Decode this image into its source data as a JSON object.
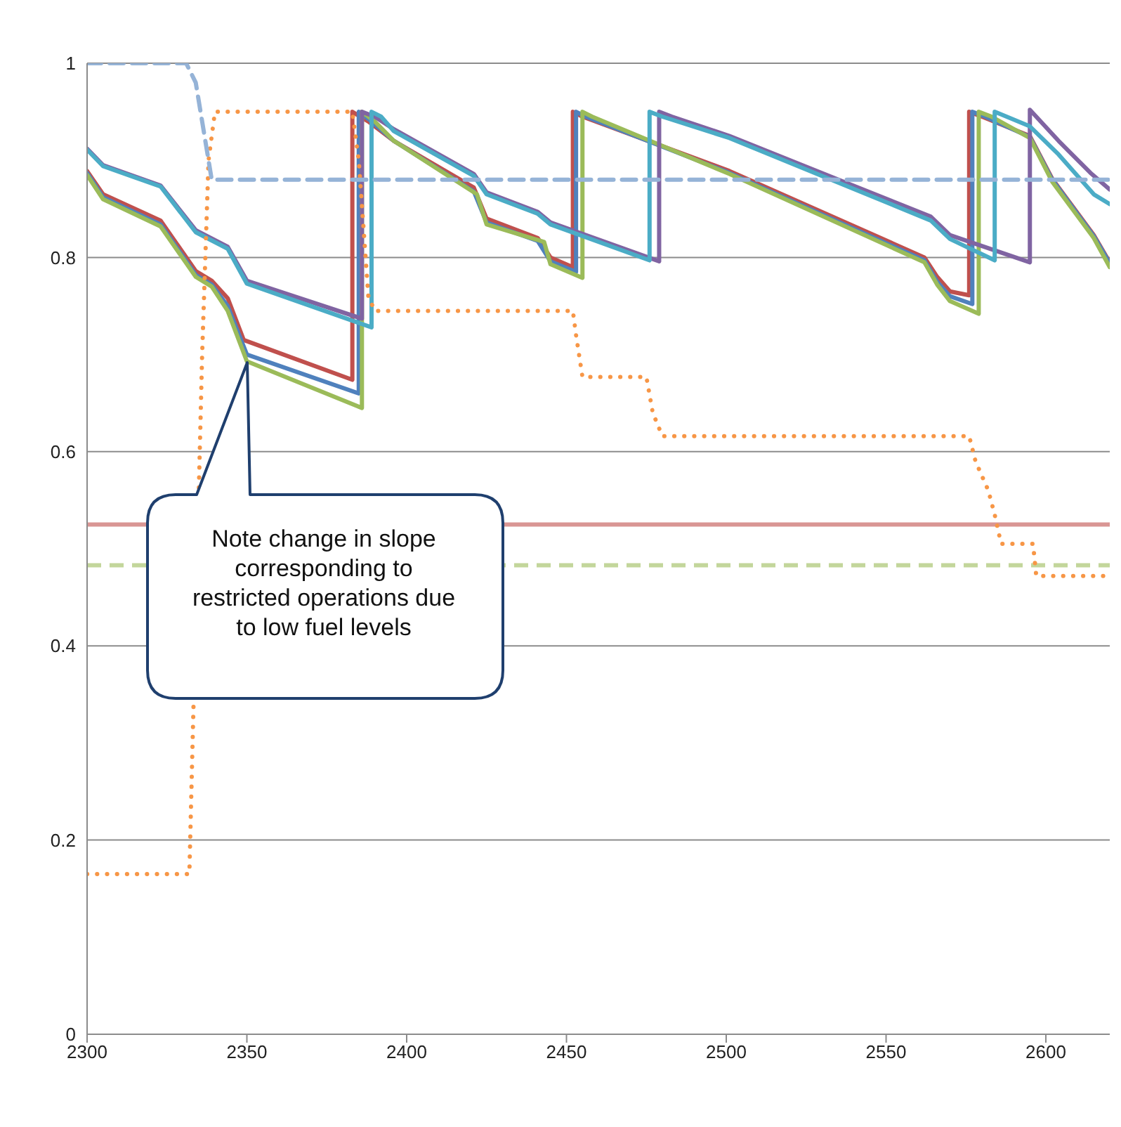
{
  "chart_data": {
    "type": "line",
    "xlim": [
      2300,
      2620
    ],
    "xticks": [
      2300,
      2350,
      2400,
      2450,
      2500,
      2550,
      2600
    ],
    "ylim": [
      0,
      1
    ],
    "yticks": [
      0,
      0.2,
      0.4,
      0.6,
      0.8,
      1
    ],
    "grid": "y",
    "marker": "none",
    "series": [
      {
        "color": "#c0504d",
        "line_style": "solid",
        "x": [
          2300,
          2305,
          2323,
          2334,
          2339,
          2344,
          2349,
          2383,
          2383,
          2388,
          2396,
          2421,
          2425,
          2441,
          2445,
          2452,
          2452,
          2455,
          2501,
          2562,
          2566,
          2570,
          2576,
          2576,
          2580,
          2595,
          2602,
          2615,
          2620
        ],
        "values": [
          0.889,
          0.865,
          0.838,
          0.786,
          0.776,
          0.758,
          0.715,
          0.674,
          0.95,
          0.94,
          0.92,
          0.872,
          0.84,
          0.82,
          0.8,
          0.79,
          0.95,
          0.945,
          0.889,
          0.8,
          0.78,
          0.765,
          0.761,
          0.95,
          0.945,
          0.925,
          0.881,
          0.823,
          0.795
        ]
      },
      {
        "color": "#4f81bd",
        "line_style": "solid",
        "x": [
          2300,
          2305,
          2323,
          2334,
          2339,
          2344,
          2350,
          2385,
          2385,
          2389,
          2396,
          2421,
          2425,
          2441,
          2445,
          2453,
          2453,
          2456,
          2501,
          2562,
          2566,
          2570,
          2577,
          2577,
          2581,
          2595,
          2602,
          2615,
          2620
        ],
        "values": [
          0.887,
          0.862,
          0.834,
          0.782,
          0.772,
          0.75,
          0.7,
          0.66,
          0.95,
          0.94,
          0.92,
          0.868,
          0.836,
          0.817,
          0.796,
          0.785,
          0.95,
          0.945,
          0.887,
          0.797,
          0.775,
          0.76,
          0.752,
          0.95,
          0.945,
          0.924,
          0.88,
          0.822,
          0.794
        ]
      },
      {
        "color": "#9bbb59",
        "line_style": "solid",
        "x": [
          2300,
          2305,
          2323,
          2334,
          2339,
          2344,
          2350,
          2386,
          2386,
          2390,
          2396,
          2422,
          2425,
          2443,
          2445,
          2455,
          2455,
          2458,
          2501,
          2562,
          2566,
          2570,
          2579,
          2579,
          2583,
          2595,
          2602,
          2615,
          2620
        ],
        "values": [
          0.885,
          0.86,
          0.832,
          0.78,
          0.77,
          0.745,
          0.693,
          0.645,
          0.95,
          0.94,
          0.92,
          0.865,
          0.834,
          0.816,
          0.793,
          0.779,
          0.95,
          0.945,
          0.886,
          0.795,
          0.772,
          0.755,
          0.742,
          0.95,
          0.945,
          0.923,
          0.878,
          0.82,
          0.79
        ]
      },
      {
        "color": "#8064a2",
        "line_style": "solid",
        "x": [
          2300,
          2305,
          2323,
          2334,
          2344,
          2350,
          2386,
          2386,
          2390,
          2396,
          2421,
          2425,
          2441,
          2445,
          2479,
          2479,
          2483,
          2501,
          2564,
          2570,
          2595,
          2595,
          2604,
          2614,
          2620
        ],
        "values": [
          0.912,
          0.895,
          0.874,
          0.828,
          0.811,
          0.776,
          0.737,
          0.95,
          0.945,
          0.932,
          0.886,
          0.867,
          0.847,
          0.836,
          0.796,
          0.95,
          0.945,
          0.925,
          0.842,
          0.823,
          0.795,
          0.952,
          0.92,
          0.887,
          0.87
        ]
      },
      {
        "color": "#4bacc6",
        "line_style": "solid",
        "x": [
          2300,
          2305,
          2323,
          2334,
          2344,
          2350,
          2389,
          2389,
          2392,
          2396,
          2421,
          2425,
          2441,
          2445,
          2476,
          2476,
          2480,
          2501,
          2564,
          2570,
          2584,
          2584,
          2595,
          2604,
          2615,
          2620
        ],
        "values": [
          0.911,
          0.894,
          0.873,
          0.826,
          0.809,
          0.773,
          0.728,
          0.95,
          0.945,
          0.93,
          0.884,
          0.865,
          0.845,
          0.834,
          0.797,
          0.95,
          0.945,
          0.923,
          0.838,
          0.819,
          0.797,
          0.95,
          0.935,
          0.906,
          0.865,
          0.855
        ]
      },
      {
        "color": "#f79646",
        "line_style": "dotted",
        "x": [
          2300,
          2332,
          2336,
          2338,
          2340,
          2383,
          2385,
          2388,
          2390,
          2452,
          2453,
          2455,
          2475,
          2477,
          2480,
          2576,
          2578,
          2582,
          2584,
          2586,
          2596,
          2597,
          2620
        ],
        "values": [
          0.165,
          0.165,
          0.7,
          0.9,
          0.95,
          0.95,
          0.9,
          0.76,
          0.745,
          0.745,
          0.72,
          0.677,
          0.677,
          0.64,
          0.616,
          0.616,
          0.59,
          0.56,
          0.535,
          0.505,
          0.505,
          0.472,
          0.472
        ]
      },
      {
        "color": "#95b3d7",
        "line_style": "dashed",
        "x": [
          2300,
          2331,
          2334,
          2337,
          2339,
          2620
        ],
        "values": [
          1,
          1,
          0.98,
          0.92,
          0.88,
          0.88
        ]
      }
    ],
    "ref_lines": [
      {
        "axis": "y",
        "value": 0.525,
        "color": "#d99694",
        "line_style": "solid"
      },
      {
        "axis": "y",
        "value": 0.483,
        "color": "#c3d69b",
        "line_style": "dashed"
      }
    ],
    "annotations": [
      "Note change in slope corresponding to restricted operations due to low fuel levels"
    ]
  }
}
